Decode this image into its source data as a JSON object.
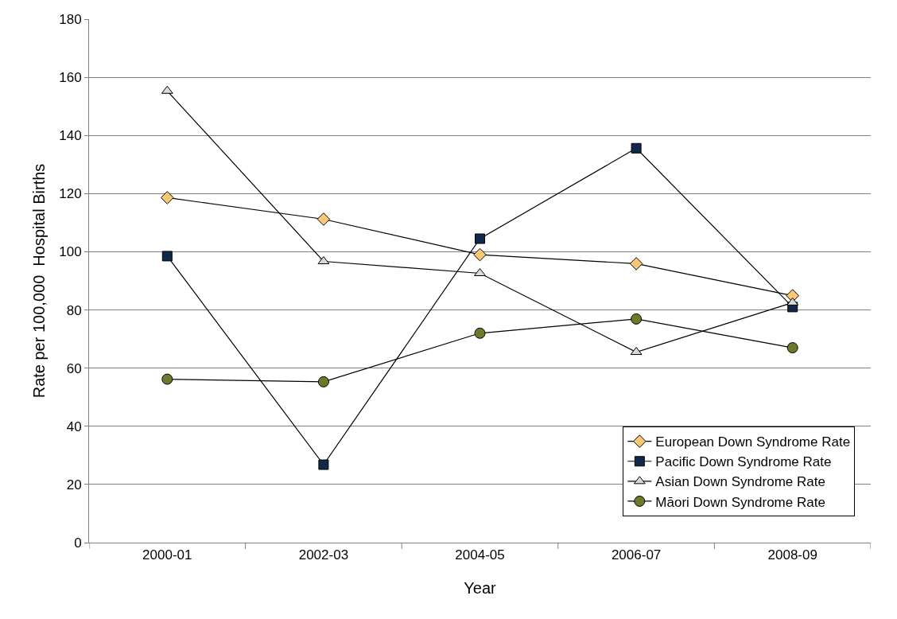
{
  "chart_data": {
    "type": "line",
    "xlabel": "Year",
    "ylabel": "Rate per 100,000  Hospital Births",
    "categories": [
      "2000-01",
      "2002-03",
      "2004-05",
      "2006-07",
      "2008-09"
    ],
    "series": [
      {
        "name": "European Down Syndrome Rate",
        "color": "#fac775",
        "marker": "diamond",
        "values": [
          118.6,
          111.2,
          99,
          95.9,
          84.9
        ]
      },
      {
        "name": "Pacific Down Syndrome Rate",
        "color": "#10284a",
        "marker": "square",
        "values": [
          98.5,
          26.8,
          104.5,
          135.6,
          81
        ]
      },
      {
        "name": "Asian Down Syndrome Rate",
        "color": "#d9d9d9",
        "marker": "triangle",
        "values": [
          155.3,
          96.7,
          92.6,
          65.5,
          82.5
        ]
      },
      {
        "name": "Māori Down Syndrome Rate",
        "color": "#6b7b2a",
        "marker": "circle",
        "values": [
          56.2,
          55.3,
          72,
          76.9,
          67
        ]
      }
    ],
    "ylim": [
      0,
      180
    ],
    "yticks": [
      0,
      20,
      40,
      60,
      80,
      100,
      120,
      140,
      160,
      180
    ],
    "grid": "y",
    "legend": "bottom right",
    "line_style": "solid"
  }
}
